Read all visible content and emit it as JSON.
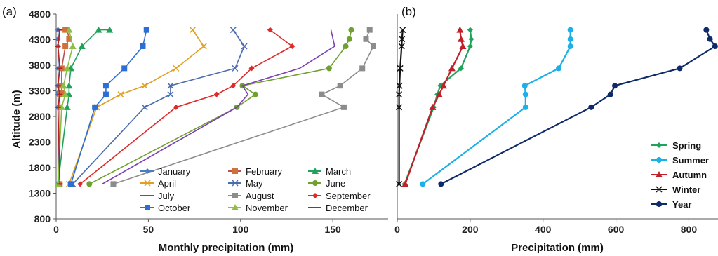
{
  "chart_data": [
    {
      "panel_label": "(a)",
      "type": "line",
      "orientation": "horizontal-profile",
      "xlabel": "Monthly precipitation (mm)",
      "ylabel": "Altitude (m)",
      "xlim": [
        0,
        180
      ],
      "ylim": [
        800,
        4800
      ],
      "x_ticks": [
        0,
        50,
        100,
        150
      ],
      "y_ticks": [
        800,
        1300,
        1800,
        2300,
        2800,
        3300,
        3800,
        4300,
        4800
      ],
      "legend_position": "bottom-right",
      "series": [
        {
          "name": "January",
          "color": "#4a7cc0",
          "marker": "diamond",
          "x": [
            1,
            1,
            1,
            1,
            1,
            1,
            1,
            1,
            1,
            1
          ],
          "y": [
            1480,
            2980,
            3230,
            3260,
            3400,
            3740,
            4170,
            4310,
            4490,
            4490
          ]
        },
        {
          "name": "February",
          "color": "#c0504d",
          "marker": "square-orange",
          "x": [
            2,
            2,
            2,
            3,
            3,
            3,
            5,
            7,
            6,
            5
          ],
          "y": [
            1480,
            2980,
            3230,
            3260,
            3400,
            3740,
            4170,
            4310,
            4490,
            4490
          ]
        },
        {
          "name": "March",
          "color": "#1fa35b",
          "marker": "triangle",
          "x": [
            1,
            6,
            7,
            7,
            8,
            14,
            23,
            29
          ],
          "y": [
            1480,
            2980,
            3230,
            3400,
            3740,
            4170,
            4490,
            4490
          ]
        },
        {
          "name": "April",
          "color": "#e0a020",
          "marker": "x",
          "x": [
            7,
            22,
            35,
            48,
            65,
            80,
            74
          ],
          "y": [
            1480,
            2980,
            3230,
            3400,
            3740,
            4170,
            4490
          ]
        },
        {
          "name": "May",
          "color": "#4a6db0",
          "marker": "x",
          "x": [
            9,
            48,
            62,
            62,
            97,
            102,
            96
          ],
          "y": [
            1480,
            2980,
            3230,
            3400,
            3740,
            4170,
            4490
          ]
        },
        {
          "name": "June",
          "color": "#70a030",
          "marker": "circle",
          "x": [
            18,
            98,
            108,
            101,
            148,
            157,
            159,
            160
          ],
          "y": [
            1480,
            2980,
            3230,
            3400,
            3740,
            4170,
            4310,
            4490
          ]
        },
        {
          "name": "July",
          "color": "#7a3fb5",
          "marker": "none",
          "x": [
            25,
            98,
            104,
            101,
            132,
            151,
            149
          ],
          "y": [
            1480,
            2980,
            3230,
            3400,
            3740,
            4170,
            4490
          ]
        },
        {
          "name": "August",
          "color": "#8c8c8c",
          "marker": "square",
          "x": [
            31,
            156,
            144,
            154,
            166,
            172,
            168,
            170
          ],
          "y": [
            1480,
            2980,
            3230,
            3400,
            3740,
            4170,
            4310,
            4490
          ]
        },
        {
          "name": "September",
          "color": "#e02a2a",
          "marker": "diamond",
          "x": [
            13,
            65,
            87,
            96,
            106,
            128,
            116
          ],
          "y": [
            1480,
            2980,
            3230,
            3400,
            3740,
            4170,
            4490
          ]
        },
        {
          "name": "October",
          "color": "#2b6fd6",
          "marker": "square",
          "x": [
            8,
            21,
            27,
            27,
            37,
            47,
            49
          ],
          "y": [
            1480,
            2980,
            3230,
            3400,
            3740,
            4170,
            4490
          ]
        },
        {
          "name": "November",
          "color": "#8cbf45",
          "marker": "triangle",
          "x": [
            1,
            3,
            5,
            4,
            6,
            9,
            7
          ],
          "y": [
            1480,
            2980,
            3230,
            3400,
            3740,
            4170,
            4490
          ]
        },
        {
          "name": "December",
          "color": "#b22222",
          "marker": "dash",
          "x": [
            2,
            1,
            2,
            1,
            2,
            1,
            2
          ],
          "y": [
            1480,
            2980,
            3230,
            3400,
            3740,
            4170,
            4490
          ]
        }
      ]
    },
    {
      "panel_label": "(b)",
      "type": "line",
      "orientation": "horizontal-profile",
      "xlabel": "Precipitation (mm)",
      "ylabel": "",
      "xlim": [
        0,
        880
      ],
      "ylim": [
        800,
        4800
      ],
      "x_ticks": [
        0,
        200,
        400,
        600,
        800
      ],
      "legend_position": "bottom-right",
      "series": [
        {
          "name": "Spring",
          "color": "#1fa35b",
          "marker": "diamond",
          "x": [
            20,
            100,
            110,
            118,
            175,
            200,
            203,
            200
          ],
          "y": [
            1480,
            2980,
            3230,
            3400,
            3740,
            4170,
            4310,
            4490
          ]
        },
        {
          "name": "Summer",
          "color": "#1ab0e8",
          "marker": "circle",
          "x": [
            70,
            352,
            352,
            350,
            443,
            475,
            475,
            475
          ],
          "y": [
            1480,
            2980,
            3230,
            3400,
            3740,
            4170,
            4310,
            4490
          ]
        },
        {
          "name": "Autumn",
          "color": "#c0202a",
          "marker": "triangle",
          "x": [
            22,
            97,
            115,
            127,
            150,
            180,
            175,
            172
          ],
          "y": [
            1480,
            2980,
            3230,
            3400,
            3740,
            4170,
            4310,
            4490
          ]
        },
        {
          "name": "Winter",
          "color": "#111111",
          "marker": "x",
          "x": [
            5,
            5,
            5,
            6,
            8,
            12,
            13,
            15
          ],
          "y": [
            1480,
            2980,
            3230,
            3400,
            3740,
            4170,
            4310,
            4490
          ]
        },
        {
          "name": "Year",
          "color": "#0d2a6b",
          "marker": "circle",
          "x": [
            120,
            532,
            585,
            597,
            775,
            872,
            858,
            848
          ],
          "y": [
            1480,
            2980,
            3230,
            3400,
            3740,
            4170,
            4310,
            4490
          ]
        }
      ]
    }
  ]
}
